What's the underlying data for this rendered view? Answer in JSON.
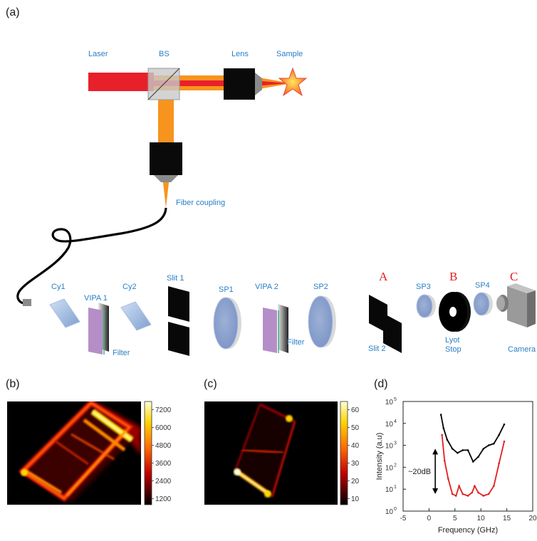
{
  "panels": {
    "a": "(a)",
    "b": "(b)",
    "c": "(c)",
    "d": "(d)"
  },
  "setup": {
    "laser": "Laser",
    "bs": "BS",
    "lens": "Lens",
    "sample": "Sample",
    "fiber": "Fiber coupling",
    "cy1": "Cy1",
    "vipa1": "VIPA 1",
    "cy2": "Cy2",
    "filter1": "Filter",
    "slit1": "Slit 1",
    "sp1": "SP1",
    "vipa2": "VIPA 2",
    "filter2": "Filter",
    "sp2": "SP2",
    "a": "A",
    "slit2": "Slit 2",
    "sp3": "SP3",
    "b": "B",
    "lyot1": "Lyot",
    "lyot2": "Stop",
    "sp4": "SP4",
    "c": "C",
    "camera": "Camera"
  },
  "colorbars": {
    "b": {
      "ticks": [
        "7200",
        "6000",
        "4800",
        "3600",
        "2400",
        "1200"
      ]
    },
    "c": {
      "ticks": [
        "60",
        "50",
        "40",
        "30",
        "20",
        "10"
      ]
    }
  },
  "chart_data": {
    "type": "line",
    "xlabel": "Frequency (GHz)",
    "ylabel": "Intensity (a.u)",
    "xlim": [
      -5,
      20
    ],
    "ylim": [
      1,
      100000
    ],
    "yscale": "log",
    "xticks": [
      "-5",
      "0",
      "5",
      "10",
      "15",
      "20"
    ],
    "yticks": [
      "10",
      "10",
      "10",
      "10",
      "10",
      "10"
    ],
    "ytick_exponents": [
      "0",
      "1",
      "2",
      "3",
      "4",
      "5"
    ],
    "annotation": "~20dB",
    "series": [
      {
        "color": "#000000",
        "x": [
          2.3,
          2.8,
          3.5,
          4.5,
          5.5,
          6.5,
          7.5,
          8.5,
          9.5,
          10.5,
          11.5,
          12.5,
          13.5,
          14.5
        ],
        "y": [
          25000,
          6000,
          1800,
          700,
          450,
          600,
          600,
          180,
          300,
          700,
          1000,
          1200,
          3000,
          9000
        ]
      },
      {
        "color": "#e02020",
        "x": [
          2.5,
          3.0,
          3.7,
          4.5,
          5.2,
          5.8,
          6.5,
          7.5,
          8.3,
          8.8,
          9.5,
          10.5,
          11.5,
          12.5,
          13.5,
          14.5
        ],
        "y": [
          3000,
          200,
          30,
          6,
          5,
          14,
          6,
          5,
          7,
          14,
          7,
          5,
          6,
          14,
          150,
          1500
        ]
      }
    ]
  }
}
